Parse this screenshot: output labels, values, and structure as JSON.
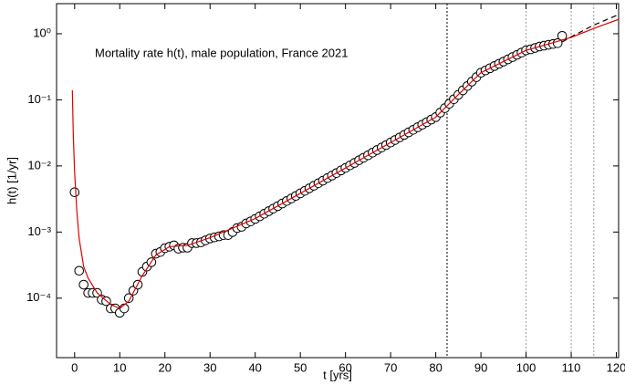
{
  "chart_data": {
    "type": "scatter",
    "title": "Mortality rate h(t), male population, France 2021",
    "xlabel": "t [yrs]",
    "ylabel": "h(t) [1/yr]",
    "ylog": true,
    "xlim": [
      -4,
      120.5
    ],
    "ylim": [
      1.26e-05,
      2.85
    ],
    "xticks": [
      0,
      10,
      20,
      30,
      40,
      50,
      60,
      70,
      80,
      90,
      100,
      110,
      120
    ],
    "yticks": [
      {
        "value": 1,
        "label": "10⁰"
      },
      {
        "value": 0.1,
        "label": "10⁻¹"
      },
      {
        "value": 0.01,
        "label": "10⁻²"
      },
      {
        "value": 0.001,
        "label": "10⁻³"
      },
      {
        "value": 0.0001,
        "label": "10⁻⁴"
      }
    ],
    "vlines": [
      {
        "value": 82.5,
        "color": "#000000"
      },
      {
        "value": 100,
        "color": "#999999"
      },
      {
        "value": 110,
        "color": "#999999"
      },
      {
        "value": 115,
        "color": "#999999"
      }
    ],
    "series": [
      {
        "type": "scatter",
        "color": "#000000",
        "x": [
          0,
          1,
          2,
          3,
          4,
          5,
          6,
          7,
          8,
          9,
          10,
          11,
          12,
          13,
          14,
          15,
          16,
          17,
          18,
          19,
          20,
          21,
          22,
          23,
          24,
          25,
          26,
          27,
          28,
          29,
          30,
          31,
          32,
          33,
          34,
          35,
          36,
          37,
          38,
          39,
          40,
          41,
          42,
          43,
          44,
          45,
          46,
          47,
          48,
          49,
          50,
          51,
          52,
          53,
          54,
          55,
          56,
          57,
          58,
          59,
          60,
          61,
          62,
          63,
          64,
          65,
          66,
          67,
          68,
          69,
          70,
          71,
          72,
          73,
          74,
          75,
          76,
          77,
          78,
          79,
          80,
          81,
          82,
          83,
          84,
          85,
          86,
          87,
          88,
          89,
          90,
          91,
          92,
          93,
          94,
          95,
          96,
          97,
          98,
          99,
          100,
          101,
          102,
          103,
          104,
          105,
          106,
          107,
          108
        ],
        "values": [
          0.004,
          0.00026,
          0.00016,
          0.00012,
          0.00012,
          0.00012,
          9.5e-05,
          9e-05,
          7e-05,
          7e-05,
          6e-05,
          7e-05,
          0.0001,
          0.00013,
          0.00016,
          0.00025,
          0.0003,
          0.00035,
          0.00047,
          0.0005,
          0.00057,
          0.0006,
          0.00063,
          0.00056,
          0.00058,
          0.00058,
          0.00068,
          0.00068,
          0.0007,
          0.00075,
          0.0008,
          0.00083,
          0.00086,
          0.0009,
          0.0009,
          0.001,
          0.00115,
          0.0012,
          0.00135,
          0.00145,
          0.00158,
          0.00173,
          0.00189,
          0.00207,
          0.00226,
          0.00247,
          0.0027,
          0.00295,
          0.00322,
          0.00352,
          0.00385,
          0.0042,
          0.00459,
          0.00502,
          0.00548,
          0.00599,
          0.00655,
          0.00715,
          0.00781,
          0.00854,
          0.00933,
          0.0102,
          0.0111,
          0.0122,
          0.0133,
          0.0145,
          0.0159,
          0.0174,
          0.019,
          0.0207,
          0.0226,
          0.0247,
          0.027,
          0.0295,
          0.0322,
          0.0352,
          0.0385,
          0.042,
          0.0459,
          0.0502,
          0.0548,
          0.064,
          0.0747,
          0.0872,
          0.102,
          0.119,
          0.139,
          0.162,
          0.189,
          0.22,
          0.257,
          0.278,
          0.3,
          0.325,
          0.351,
          0.379,
          0.41,
          0.443,
          0.479,
          0.518,
          0.56,
          0.58,
          0.61,
          0.64,
          0.66,
          0.68,
          0.7,
          0.72,
          0.93
        ]
      },
      {
        "type": "line",
        "style": "dashed",
        "color": "#000000",
        "x": [
          108,
          110,
          115,
          120.5
        ],
        "values": [
          0.75,
          0.9,
          1.35,
          1.95
        ]
      },
      {
        "type": "line",
        "style": "solid",
        "color": "#e00000",
        "x": [
          -0.5,
          -0.3,
          0,
          0.5,
          1,
          2,
          3,
          5,
          8,
          10,
          12,
          15,
          18,
          21,
          25,
          30,
          40,
          50,
          60,
          70,
          80,
          85,
          90,
          95,
          100,
          105,
          110,
          115,
          120.5
        ],
        "values": [
          0.14,
          0.03,
          0.008,
          0.002,
          0.0008,
          0.0003,
          0.0002,
          0.00012,
          8e-05,
          7e-05,
          9e-05,
          0.00022,
          0.00045,
          0.0006,
          0.00063,
          0.00082,
          0.0016,
          0.00385,
          0.0093,
          0.0226,
          0.0548,
          0.12,
          0.257,
          0.38,
          0.56,
          0.7,
          0.88,
          1.2,
          1.65
        ]
      }
    ]
  }
}
